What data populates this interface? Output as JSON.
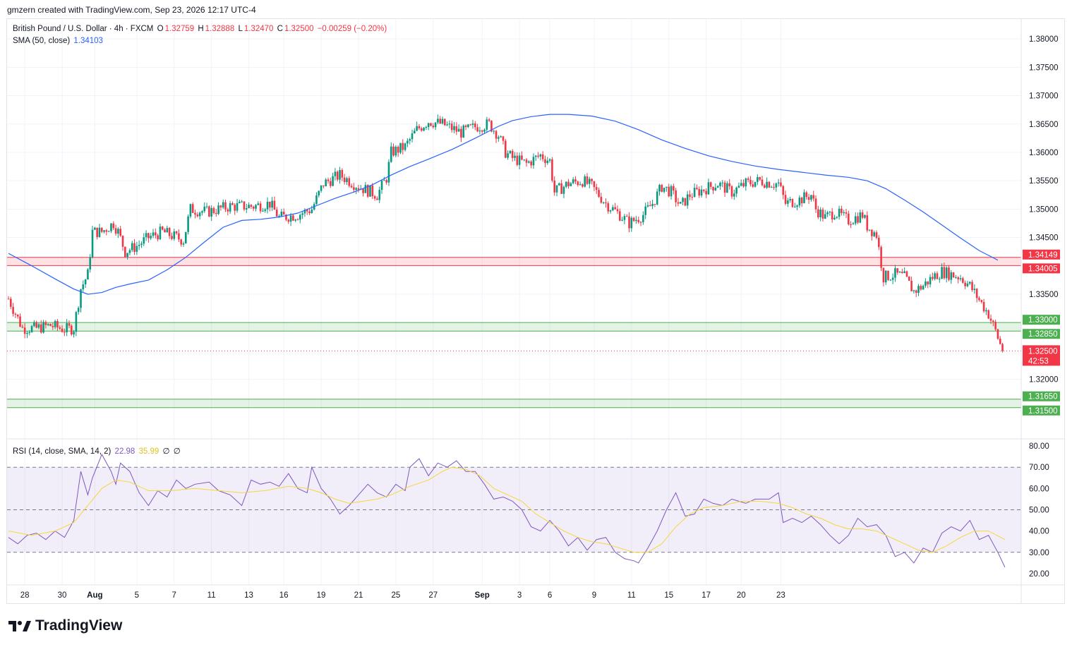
{
  "header": {
    "credit": "gmzern created with TradingView.com, Sep 23, 2026 12:17 UTC-4"
  },
  "legend": {
    "symbol": "British Pound / U.S. Dollar · 4h · FXCM",
    "open_label": "O",
    "open": "1.32759",
    "high_label": "H",
    "high": "1.32888",
    "low_label": "L",
    "low": "1.32470",
    "close_label": "C",
    "close": "1.32500",
    "change": "−0.00259 (−0.20%)",
    "sma_label": "SMA (50, close)",
    "sma_value": "1.34103",
    "rsi_label": "RSI (14, close, SMA, 14, 2)",
    "rsi_value": "22.98",
    "rsi_sma_value": "35.99",
    "rsi_extra1": "∅",
    "rsi_extra2": "∅"
  },
  "brand": {
    "name": "TradingView"
  },
  "colors": {
    "up": "#089981",
    "down": "#f23645",
    "sma": "#2962ff",
    "rsi": "#7e57c2",
    "rsi_sma": "#f5d63d",
    "resistance": "#f23645",
    "support": "#4caf50"
  },
  "chart_data": [
    {
      "type": "candlestick",
      "title": "British Pound / U.S. Dollar · 4h · FXCM",
      "ylim": [
        1.3095,
        1.3835
      ],
      "y_ticks": [
        "1.38000",
        "1.37500",
        "1.37000",
        "1.36500",
        "1.36000",
        "1.35500",
        "1.35000",
        "1.34500",
        "1.33500",
        "1.32000"
      ],
      "x_tick_labels": [
        "28",
        "30",
        "Aug",
        "5",
        "7",
        "11",
        "13",
        "16",
        "19",
        "21",
        "25",
        "27",
        "Sep",
        "3",
        "6",
        "9",
        "11",
        "15",
        "17",
        "20",
        "23"
      ],
      "last_price": "1.32500",
      "countdown": "42:53",
      "zones": [
        {
          "kind": "resistance",
          "upper": 1.34149,
          "lower": 1.34005,
          "upper_label": "1.34149",
          "lower_label": "1.34005"
        },
        {
          "kind": "support",
          "upper": 1.33,
          "lower": 1.3285,
          "upper_label": "1.33000",
          "lower_label": "1.32850"
        },
        {
          "kind": "support",
          "upper": 1.3165,
          "lower": 1.315,
          "upper_label": "1.31650",
          "lower_label": "1.31500"
        }
      ],
      "close_path": [
        [
          0,
          1.3342
        ],
        [
          6,
          1.329
        ],
        [
          12,
          1.329
        ],
        [
          18,
          1.3295
        ],
        [
          24,
          1.3288
        ],
        [
          28,
          1.329
        ],
        [
          31,
          1.336
        ],
        [
          34,
          1.3385
        ],
        [
          36,
          1.346
        ],
        [
          40,
          1.346
        ],
        [
          45,
          1.3475
        ],
        [
          47,
          1.346
        ],
        [
          50,
          1.3425
        ],
        [
          55,
          1.3435
        ],
        [
          60,
          1.345
        ],
        [
          66,
          1.346
        ],
        [
          72,
          1.345
        ],
        [
          75,
          1.3445
        ],
        [
          78,
          1.35
        ],
        [
          85,
          1.3495
        ],
        [
          95,
          1.3505
        ],
        [
          105,
          1.3505
        ],
        [
          112,
          1.351
        ],
        [
          116,
          1.3485
        ],
        [
          124,
          1.349
        ],
        [
          130,
          1.35
        ],
        [
          135,
          1.3545
        ],
        [
          142,
          1.356
        ],
        [
          150,
          1.354
        ],
        [
          158,
          1.3525
        ],
        [
          162,
          1.3555
        ],
        [
          164,
          1.36
        ],
        [
          170,
          1.361
        ],
        [
          175,
          1.364
        ],
        [
          180,
          1.3655
        ],
        [
          186,
          1.365
        ],
        [
          194,
          1.3635
        ],
        [
          200,
          1.3645
        ],
        [
          206,
          1.365
        ],
        [
          210,
          1.363
        ],
        [
          213,
          1.36
        ],
        [
          216,
          1.359
        ],
        [
          222,
          1.358
        ],
        [
          228,
          1.3595
        ],
        [
          232,
          1.3585
        ],
        [
          234,
          1.353
        ],
        [
          240,
          1.3545
        ],
        [
          246,
          1.355
        ],
        [
          250,
          1.354
        ],
        [
          256,
          1.351
        ],
        [
          262,
          1.349
        ],
        [
          266,
          1.3475
        ],
        [
          272,
          1.349
        ],
        [
          276,
          1.351
        ],
        [
          280,
          1.354
        ],
        [
          284,
          1.353
        ],
        [
          288,
          1.3505
        ],
        [
          292,
          1.3525
        ],
        [
          298,
          1.3535
        ],
        [
          304,
          1.3545
        ],
        [
          310,
          1.353
        ],
        [
          316,
          1.3545
        ],
        [
          322,
          1.355
        ],
        [
          328,
          1.3545
        ],
        [
          330,
          1.3545
        ],
        [
          333,
          1.351
        ],
        [
          338,
          1.3515
        ],
        [
          344,
          1.3525
        ],
        [
          346,
          1.35
        ],
        [
          350,
          1.3485
        ],
        [
          354,
          1.3495
        ],
        [
          360,
          1.348
        ],
        [
          366,
          1.349
        ],
        [
          368,
          1.347
        ],
        [
          372,
          1.3455
        ],
        [
          375,
          1.338
        ],
        [
          380,
          1.3385
        ],
        [
          384,
          1.338
        ],
        [
          388,
          1.3355
        ],
        [
          392,
          1.3365
        ],
        [
          396,
          1.338
        ],
        [
          400,
          1.339
        ],
        [
          404,
          1.3385
        ],
        [
          408,
          1.338
        ],
        [
          412,
          1.3365
        ],
        [
          416,
          1.334
        ],
        [
          420,
          1.3315
        ],
        [
          423,
          1.3285
        ],
        [
          426,
          1.325
        ]
      ],
      "sma_path": [
        [
          0,
          1.3422
        ],
        [
          10,
          1.34
        ],
        [
          20,
          1.3377
        ],
        [
          28,
          1.3359
        ],
        [
          34,
          1.335
        ],
        [
          40,
          1.3353
        ],
        [
          46,
          1.3362
        ],
        [
          52,
          1.3368
        ],
        [
          60,
          1.3375
        ],
        [
          68,
          1.3393
        ],
        [
          76,
          1.3415
        ],
        [
          84,
          1.3442
        ],
        [
          92,
          1.3468
        ],
        [
          100,
          1.348
        ],
        [
          108,
          1.3482
        ],
        [
          116,
          1.3486
        ],
        [
          124,
          1.3493
        ],
        [
          132,
          1.3506
        ],
        [
          140,
          1.3519
        ],
        [
          148,
          1.353
        ],
        [
          156,
          1.3543
        ],
        [
          164,
          1.356
        ],
        [
          172,
          1.3575
        ],
        [
          180,
          1.3588
        ],
        [
          190,
          1.3605
        ],
        [
          200,
          1.3625
        ],
        [
          210,
          1.3646
        ],
        [
          216,
          1.3656
        ],
        [
          224,
          1.3663
        ],
        [
          232,
          1.3667
        ],
        [
          240,
          1.3667
        ],
        [
          250,
          1.3664
        ],
        [
          260,
          1.3655
        ],
        [
          270,
          1.364
        ],
        [
          280,
          1.3622
        ],
        [
          290,
          1.3607
        ],
        [
          300,
          1.3594
        ],
        [
          310,
          1.3584
        ],
        [
          320,
          1.3576
        ],
        [
          330,
          1.357
        ],
        [
          340,
          1.3565
        ],
        [
          350,
          1.356
        ],
        [
          360,
          1.3556
        ],
        [
          368,
          1.355
        ],
        [
          376,
          1.3536
        ],
        [
          384,
          1.3516
        ],
        [
          392,
          1.3495
        ],
        [
          400,
          1.3472
        ],
        [
          408,
          1.3449
        ],
        [
          416,
          1.3427
        ],
        [
          424,
          1.341
        ]
      ]
    },
    {
      "type": "line",
      "title": "RSI (14, close, SMA, 14, 2)",
      "ylim": [
        15,
        83
      ],
      "y_ticks": [
        "80.00",
        "70.00",
        "60.00",
        "50.00",
        "40.00",
        "30.00",
        "20.00"
      ],
      "bands": [
        70,
        50,
        30
      ],
      "rsi_path": [
        [
          0,
          37
        ],
        [
          4,
          34
        ],
        [
          8,
          38
        ],
        [
          12,
          39
        ],
        [
          16,
          36
        ],
        [
          20,
          40
        ],
        [
          24,
          37
        ],
        [
          28,
          45
        ],
        [
          31,
          68
        ],
        [
          34,
          57
        ],
        [
          36,
          65
        ],
        [
          40,
          76
        ],
        [
          44,
          68
        ],
        [
          46,
          62
        ],
        [
          48,
          72
        ],
        [
          52,
          68
        ],
        [
          56,
          58
        ],
        [
          60,
          52
        ],
        [
          64,
          59
        ],
        [
          68,
          56
        ],
        [
          72,
          64
        ],
        [
          76,
          60
        ],
        [
          80,
          62
        ],
        [
          86,
          63
        ],
        [
          90,
          59
        ],
        [
          95,
          57
        ],
        [
          100,
          52
        ],
        [
          104,
          64
        ],
        [
          108,
          62
        ],
        [
          112,
          63
        ],
        [
          116,
          61
        ],
        [
          120,
          67
        ],
        [
          124,
          60
        ],
        [
          128,
          58
        ],
        [
          130,
          70
        ],
        [
          134,
          60
        ],
        [
          138,
          55
        ],
        [
          142,
          48
        ],
        [
          146,
          52
        ],
        [
          150,
          57
        ],
        [
          154,
          62
        ],
        [
          158,
          58
        ],
        [
          162,
          56
        ],
        [
          166,
          62
        ],
        [
          170,
          59
        ],
        [
          172,
          70
        ],
        [
          176,
          74
        ],
        [
          180,
          66
        ],
        [
          184,
          72
        ],
        [
          188,
          70
        ],
        [
          192,
          73
        ],
        [
          196,
          68
        ],
        [
          200,
          68
        ],
        [
          204,
          62
        ],
        [
          208,
          55
        ],
        [
          212,
          56
        ],
        [
          216,
          54
        ],
        [
          220,
          50
        ],
        [
          224,
          42
        ],
        [
          228,
          40
        ],
        [
          232,
          45
        ],
        [
          236,
          40
        ],
        [
          240,
          33
        ],
        [
          244,
          37
        ],
        [
          248,
          31
        ],
        [
          252,
          36
        ],
        [
          256,
          37
        ],
        [
          260,
          30
        ],
        [
          264,
          27
        ],
        [
          268,
          26
        ],
        [
          270,
          25
        ],
        [
          274,
          32
        ],
        [
          278,
          40
        ],
        [
          282,
          50
        ],
        [
          286,
          58
        ],
        [
          290,
          47
        ],
        [
          294,
          48
        ],
        [
          298,
          55
        ],
        [
          302,
          53
        ],
        [
          306,
          52
        ],
        [
          310,
          55
        ],
        [
          316,
          53
        ],
        [
          320,
          55
        ],
        [
          326,
          55
        ],
        [
          330,
          58
        ],
        [
          332,
          44
        ],
        [
          336,
          46
        ],
        [
          340,
          44
        ],
        [
          344,
          47
        ],
        [
          348,
          43
        ],
        [
          352,
          38
        ],
        [
          356,
          34
        ],
        [
          360,
          38
        ],
        [
          364,
          46
        ],
        [
          368,
          42
        ],
        [
          372,
          43
        ],
        [
          376,
          38
        ],
        [
          380,
          28
        ],
        [
          384,
          30
        ],
        [
          388,
          25
        ],
        [
          392,
          32
        ],
        [
          396,
          30
        ],
        [
          400,
          39
        ],
        [
          404,
          42
        ],
        [
          408,
          40
        ],
        [
          412,
          45
        ],
        [
          416,
          36
        ],
        [
          420,
          38
        ],
        [
          424,
          30
        ],
        [
          427,
          23
        ]
      ],
      "rsi_sma_path": [
        [
          0,
          40
        ],
        [
          10,
          38
        ],
        [
          20,
          40
        ],
        [
          28,
          44
        ],
        [
          34,
          52
        ],
        [
          40,
          60
        ],
        [
          46,
          64
        ],
        [
          52,
          63
        ],
        [
          60,
          59
        ],
        [
          70,
          59
        ],
        [
          80,
          60
        ],
        [
          90,
          59
        ],
        [
          100,
          58
        ],
        [
          110,
          59
        ],
        [
          120,
          61
        ],
        [
          128,
          60
        ],
        [
          134,
          58
        ],
        [
          140,
          55
        ],
        [
          146,
          53
        ],
        [
          152,
          54
        ],
        [
          158,
          55
        ],
        [
          164,
          57
        ],
        [
          172,
          61
        ],
        [
          180,
          64
        ],
        [
          186,
          68
        ],
        [
          190,
          70
        ],
        [
          196,
          69
        ],
        [
          202,
          66
        ],
        [
          208,
          60
        ],
        [
          214,
          57
        ],
        [
          220,
          54
        ],
        [
          226,
          48
        ],
        [
          232,
          44
        ],
        [
          238,
          40
        ],
        [
          244,
          37
        ],
        [
          250,
          35
        ],
        [
          256,
          34
        ],
        [
          262,
          32
        ],
        [
          268,
          30
        ],
        [
          274,
          30
        ],
        [
          280,
          34
        ],
        [
          286,
          42
        ],
        [
          292,
          48
        ],
        [
          298,
          51
        ],
        [
          306,
          52
        ],
        [
          314,
          54
        ],
        [
          322,
          54
        ],
        [
          330,
          53
        ],
        [
          336,
          51
        ],
        [
          342,
          48
        ],
        [
          348,
          46
        ],
        [
          354,
          43
        ],
        [
          360,
          41
        ],
        [
          366,
          41
        ],
        [
          372,
          40
        ],
        [
          378,
          37
        ],
        [
          384,
          34
        ],
        [
          390,
          31
        ],
        [
          396,
          30
        ],
        [
          402,
          33
        ],
        [
          408,
          37
        ],
        [
          414,
          40
        ],
        [
          420,
          40
        ],
        [
          427,
          36
        ]
      ]
    }
  ]
}
